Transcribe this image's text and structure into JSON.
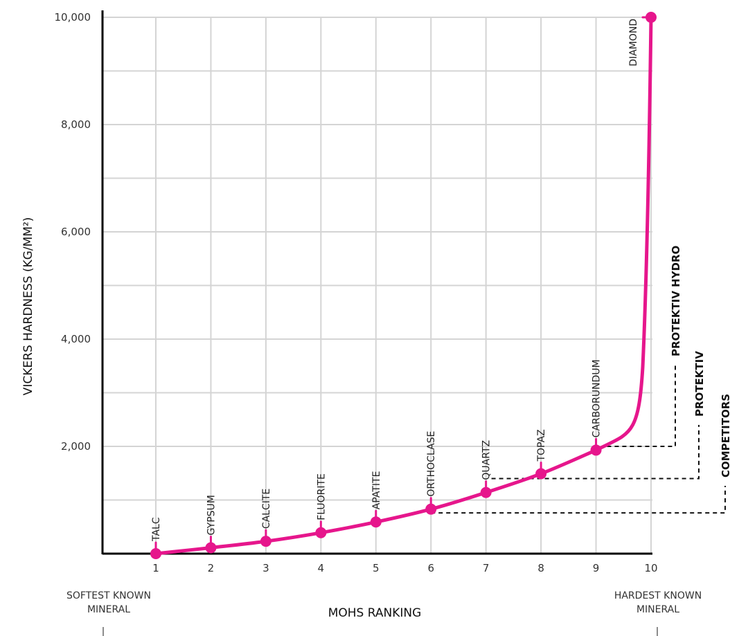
{
  "chart_data": {
    "type": "line",
    "xlabel": "MOHS RANKING",
    "ylabel": "VICKERS HARDNESS (KG/MM²)",
    "xlim": [
      1,
      10
    ],
    "ylim": [
      0,
      10000
    ],
    "y_ticks": [
      2000,
      4000,
      6000,
      8000,
      10000
    ],
    "y_tick_labels": [
      "2,000",
      "4,000",
      "6,000",
      "8,000",
      "10,000"
    ],
    "x_tick_labels": [
      "1",
      "2",
      "3",
      "4",
      "5",
      "6",
      "7",
      "8",
      "9",
      "10"
    ],
    "grid": true,
    "series": [
      {
        "color": "#e6168c",
        "points": [
          {
            "x": 1,
            "y": 0,
            "label": "TALC"
          },
          {
            "x": 2,
            "y": 110,
            "label": "GYPSUM"
          },
          {
            "x": 3,
            "y": 230,
            "label": "CALCITE"
          },
          {
            "x": 4,
            "y": 390,
            "label": "FLUORITE"
          },
          {
            "x": 5,
            "y": 590,
            "label": "APATITE"
          },
          {
            "x": 6,
            "y": 830,
            "label": "ORTHOCLASE"
          },
          {
            "x": 7,
            "y": 1140,
            "label": "QUARTZ"
          },
          {
            "x": 8,
            "y": 1490,
            "label": "TOPAZ"
          },
          {
            "x": 9,
            "y": 1930,
            "label": "CARBORUNDUM"
          },
          {
            "x": 10,
            "y": 10000,
            "label": "DIAMOND"
          }
        ]
      }
    ],
    "reference_levels": [
      {
        "label": "PROTEKTIV HYDRO",
        "y": 2000
      },
      {
        "label": "PROTEKTIV",
        "y": 1400
      },
      {
        "label": "COMPETITORS",
        "y": 760
      }
    ],
    "annotations": {
      "left_extreme": [
        "SOFTEST KNOWN",
        "MINERAL"
      ],
      "right_extreme": [
        "HARDEST KNOWN",
        "MINERAL"
      ]
    }
  }
}
